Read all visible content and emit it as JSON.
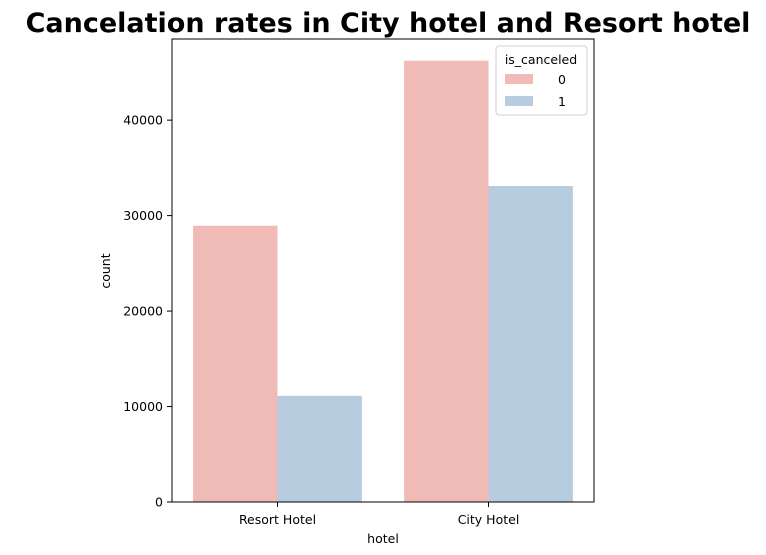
{
  "chart_data": {
    "type": "bar",
    "title": "Cancelation rates in City hotel and Resort hotel",
    "xlabel": "hotel",
    "ylabel": "count",
    "categories": [
      "Resort Hotel",
      "City Hotel"
    ],
    "series": [
      {
        "name": "0",
        "values": [
          28938,
          46228
        ],
        "color": "#f0bab6"
      },
      {
        "name": "1",
        "values": [
          11122,
          33102
        ],
        "color": "#b8cce0"
      }
    ],
    "ylim": [
      0,
      48500
    ],
    "yticks": [
      0,
      10000,
      20000,
      30000,
      40000
    ],
    "ytick_labels": [
      "0",
      "10000",
      "20000",
      "30000",
      "40000"
    ],
    "legend": {
      "title": "is_canceled",
      "entries": [
        "0",
        "1"
      ],
      "position": "top-right"
    },
    "grid": false
  }
}
